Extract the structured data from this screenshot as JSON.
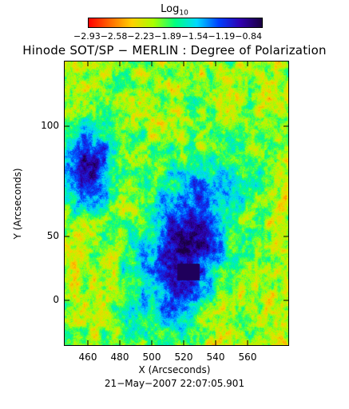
{
  "colorbar": {
    "title": "Log",
    "title_sub": "10",
    "tick_labels": "−2.93−2.58−2.23−1.89−1.54−1.19−0.84",
    "colors": [
      "#ff0000",
      "#ff6a00",
      "#ffd000",
      "#a8ff00",
      "#00ff80",
      "#00d8ff",
      "#0040ff",
      "#3000b0",
      "#1a0040"
    ]
  },
  "title": "Hinode SOT/SP − MERLIN : Degree of Polarization",
  "x_axis": {
    "label": "X (Arcseconds)",
    "ticks": [
      "460",
      "480",
      "500",
      "520",
      "540",
      "560"
    ]
  },
  "y_axis": {
    "label": "Y (Arcseconds)",
    "ticks": [
      "100",
      "50",
      "0"
    ]
  },
  "date": "21−May−2007 22:07:05.901"
}
